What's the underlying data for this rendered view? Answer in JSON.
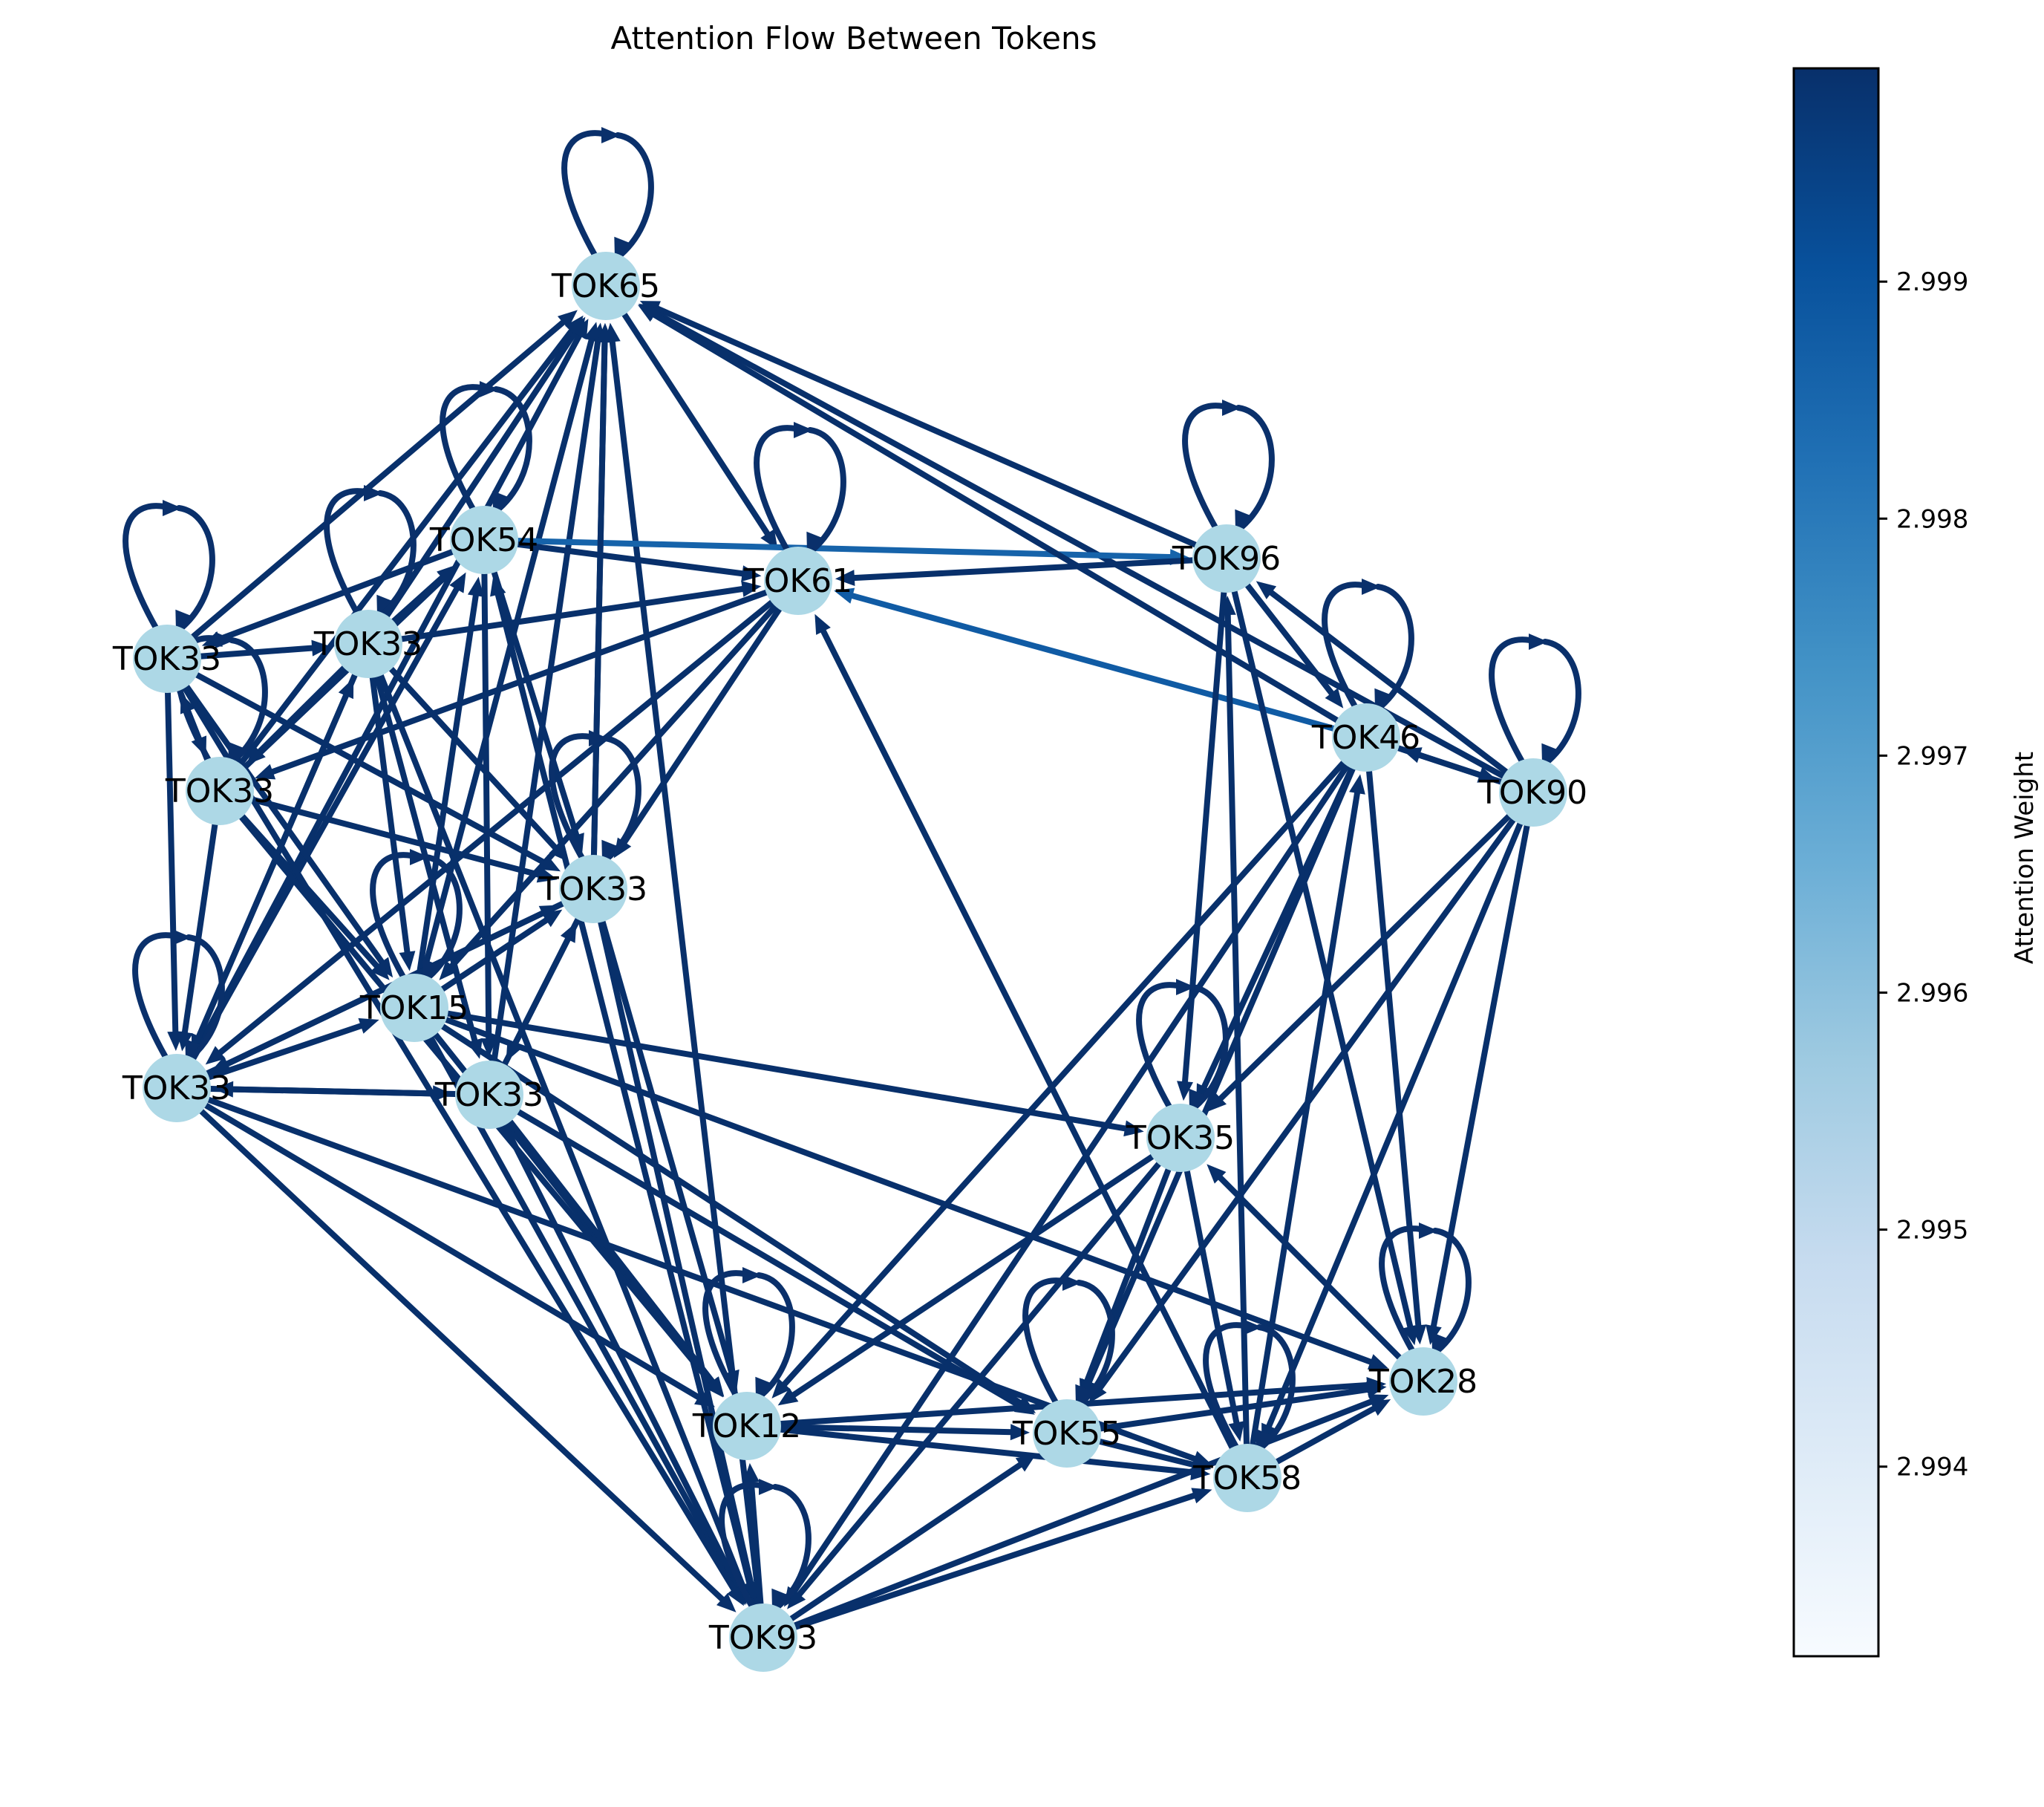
{
  "title": "Attention Flow Between Tokens",
  "colorbar": {
    "label": "Attention Weight",
    "range": [
      2.9932,
      2.9999
    ],
    "ticks": [
      "2.994",
      "2.995",
      "2.996",
      "2.997",
      "2.998",
      "2.999"
    ],
    "tick_values": [
      2.994,
      2.995,
      2.996,
      2.997,
      2.998,
      2.999
    ],
    "colormap": "Blues",
    "colors": [
      "#f7fbff",
      "#deebf7",
      "#c6dbef",
      "#9ecae1",
      "#6baed6",
      "#4292c6",
      "#2171b5",
      "#08519c",
      "#08306b"
    ]
  },
  "node_color": "#add8e6",
  "edge_color_default": "#0a306b",
  "nodes": [
    {
      "id": "n65",
      "label": "TOK65"
    },
    {
      "id": "n54",
      "label": "TOK54"
    },
    {
      "id": "n61",
      "label": "TOK61"
    },
    {
      "id": "n96",
      "label": "TOK96"
    },
    {
      "id": "n46",
      "label": "TOK46"
    },
    {
      "id": "n90",
      "label": "TOK90"
    },
    {
      "id": "a33",
      "label": "TOK33"
    },
    {
      "id": "b33",
      "label": "TOK33"
    },
    {
      "id": "c33",
      "label": "TOK33"
    },
    {
      "id": "d33",
      "label": "TOK33"
    },
    {
      "id": "e33",
      "label": "TOK33"
    },
    {
      "id": "f33",
      "label": "TOK33"
    },
    {
      "id": "n15",
      "label": "TOK15"
    },
    {
      "id": "n35",
      "label": "TOK35"
    },
    {
      "id": "n28",
      "label": "TOK28"
    },
    {
      "id": "n12",
      "label": "TOK12"
    },
    {
      "id": "n55",
      "label": "TOK55"
    },
    {
      "id": "n58",
      "label": "TOK58"
    },
    {
      "id": "n93",
      "label": "TOK93"
    }
  ],
  "self_loops": [
    "n65",
    "n54",
    "n61",
    "n96",
    "n46",
    "n90",
    "a33",
    "b33",
    "c33",
    "d33",
    "e33",
    "n15",
    "n35",
    "n28",
    "n12",
    "n55",
    "n58",
    "n93"
  ],
  "edges": [
    {
      "from": "a33",
      "to": "n65",
      "w": 2.9999
    },
    {
      "from": "b33",
      "to": "n65",
      "w": 2.9999
    },
    {
      "from": "c33",
      "to": "n65",
      "w": 2.9999
    },
    {
      "from": "e33",
      "to": "n65",
      "w": 2.9999
    },
    {
      "from": "n15",
      "to": "n65",
      "w": 2.9999
    },
    {
      "from": "f33",
      "to": "n65",
      "w": 2.9999
    },
    {
      "from": "n93",
      "to": "n65",
      "w": 2.9999
    },
    {
      "from": "n96",
      "to": "n65",
      "w": 2.9999
    },
    {
      "from": "n90",
      "to": "n65",
      "w": 2.9999
    },
    {
      "from": "d33",
      "to": "n65",
      "w": 2.9999
    },
    {
      "from": "n65",
      "to": "n61",
      "w": 2.9999
    },
    {
      "from": "n54",
      "to": "a33",
      "w": 2.9999
    },
    {
      "from": "n54",
      "to": "n96",
      "w": 2.9986
    },
    {
      "from": "n54",
      "to": "n61",
      "w": 2.9999
    },
    {
      "from": "n54",
      "to": "d33",
      "w": 2.9999
    },
    {
      "from": "n54",
      "to": "f33",
      "w": 2.9999
    },
    {
      "from": "b33",
      "to": "n54",
      "w": 2.9999
    },
    {
      "from": "c33",
      "to": "n54",
      "w": 2.9999
    },
    {
      "from": "e33",
      "to": "n54",
      "w": 2.9999
    },
    {
      "from": "n15",
      "to": "n54",
      "w": 2.9999
    },
    {
      "from": "n93",
      "to": "n54",
      "w": 2.9999
    },
    {
      "from": "n46",
      "to": "n65",
      "w": 2.9999
    },
    {
      "from": "n96",
      "to": "n61",
      "w": 2.9999
    },
    {
      "from": "n46",
      "to": "n61",
      "w": 2.9988
    },
    {
      "from": "b33",
      "to": "n61",
      "w": 2.9999
    },
    {
      "from": "n61",
      "to": "c33",
      "w": 2.9999
    },
    {
      "from": "n61",
      "to": "d33",
      "w": 2.9999
    },
    {
      "from": "n61",
      "to": "e33",
      "w": 2.9999
    },
    {
      "from": "n61",
      "to": "n15",
      "w": 2.9999
    },
    {
      "from": "n58",
      "to": "n61",
      "w": 2.9999
    },
    {
      "from": "a33",
      "to": "b33",
      "w": 2.9999
    },
    {
      "from": "a33",
      "to": "c33",
      "w": 2.9999
    },
    {
      "from": "a33",
      "to": "e33",
      "w": 2.9999
    },
    {
      "from": "a33",
      "to": "n15",
      "w": 2.9999
    },
    {
      "from": "a33",
      "to": "d33",
      "w": 2.9999
    },
    {
      "from": "c33",
      "to": "a33",
      "w": 2.9999
    },
    {
      "from": "b33",
      "to": "c33",
      "w": 2.9999
    },
    {
      "from": "b33",
      "to": "e33",
      "w": 2.9999
    },
    {
      "from": "b33",
      "to": "n15",
      "w": 2.9999
    },
    {
      "from": "b33",
      "to": "f33",
      "w": 2.9999
    },
    {
      "from": "b33",
      "to": "d33",
      "w": 2.9999
    },
    {
      "from": "b33",
      "to": "n93",
      "w": 2.9999
    },
    {
      "from": "c33",
      "to": "e33",
      "w": 2.9999
    },
    {
      "from": "c33",
      "to": "d33",
      "w": 2.9999
    },
    {
      "from": "c33",
      "to": "n15",
      "w": 2.9999
    },
    {
      "from": "c33",
      "to": "n12",
      "w": 2.9999
    },
    {
      "from": "e33",
      "to": "f33",
      "w": 2.9999
    },
    {
      "from": "e33",
      "to": "n15",
      "w": 2.9999
    },
    {
      "from": "e33",
      "to": "n93",
      "w": 2.9999
    },
    {
      "from": "e33",
      "to": "n12",
      "w": 2.9999
    },
    {
      "from": "n15",
      "to": "d33",
      "w": 2.9999
    },
    {
      "from": "f33",
      "to": "d33",
      "w": 2.9999
    },
    {
      "from": "n15",
      "to": "n35",
      "w": 2.9999
    },
    {
      "from": "n15",
      "to": "n28",
      "w": 2.9999
    },
    {
      "from": "n15",
      "to": "n55",
      "w": 2.9999
    },
    {
      "from": "n15",
      "to": "n93",
      "w": 2.9999
    },
    {
      "from": "n15",
      "to": "n12",
      "w": 2.9999
    },
    {
      "from": "f33",
      "to": "n93",
      "w": 2.9999
    },
    {
      "from": "f33",
      "to": "n12",
      "w": 2.9999
    },
    {
      "from": "f33",
      "to": "n55",
      "w": 2.9999
    },
    {
      "from": "e33",
      "to": "d33",
      "w": 2.9999
    },
    {
      "from": "d33",
      "to": "e33",
      "w": 2.9999
    },
    {
      "from": "e33",
      "to": "b33",
      "w": 2.9999
    },
    {
      "from": "f33",
      "to": "e33",
      "w": 2.9999
    },
    {
      "from": "d33",
      "to": "n93",
      "w": 2.9999
    },
    {
      "from": "d33",
      "to": "n12",
      "w": 2.9999
    },
    {
      "from": "d33",
      "to": "f33",
      "w": 2.9999
    },
    {
      "from": "a33",
      "to": "n93",
      "w": 2.9999
    },
    {
      "from": "n96",
      "to": "n46",
      "w": 2.9999
    },
    {
      "from": "n90",
      "to": "n96",
      "w": 2.9999
    },
    {
      "from": "n46",
      "to": "n90",
      "w": 2.9999
    },
    {
      "from": "n90",
      "to": "n46",
      "w": 2.9999
    },
    {
      "from": "n96",
      "to": "n35",
      "w": 2.9999
    },
    {
      "from": "n96",
      "to": "n28",
      "w": 2.9999
    },
    {
      "from": "n58",
      "to": "n96",
      "w": 2.9999
    },
    {
      "from": "n46",
      "to": "n35",
      "w": 2.9999
    },
    {
      "from": "n46",
      "to": "n12",
      "w": 2.9999
    },
    {
      "from": "n46",
      "to": "n55",
      "w": 2.9999
    },
    {
      "from": "n46",
      "to": "n93",
      "w": 2.9999
    },
    {
      "from": "n46",
      "to": "n28",
      "w": 2.9999
    },
    {
      "from": "n58",
      "to": "n46",
      "w": 2.9999
    },
    {
      "from": "n90",
      "to": "n35",
      "w": 2.9999
    },
    {
      "from": "n90",
      "to": "n28",
      "w": 2.9999
    },
    {
      "from": "n90",
      "to": "n55",
      "w": 2.9999
    },
    {
      "from": "n90",
      "to": "n58",
      "w": 2.9999
    },
    {
      "from": "n35",
      "to": "n55",
      "w": 2.9999
    },
    {
      "from": "n35",
      "to": "n93",
      "w": 2.9999
    },
    {
      "from": "n35",
      "to": "n12",
      "w": 2.9999
    },
    {
      "from": "n28",
      "to": "n35",
      "w": 2.9999
    },
    {
      "from": "n35",
      "to": "n58",
      "w": 2.9999
    },
    {
      "from": "n12",
      "to": "n55",
      "w": 2.9999
    },
    {
      "from": "n12",
      "to": "n58",
      "w": 2.9999
    },
    {
      "from": "n12",
      "to": "n28",
      "w": 2.9999
    },
    {
      "from": "n55",
      "to": "n28",
      "w": 2.9999
    },
    {
      "from": "n58",
      "to": "n28",
      "w": 2.9999
    },
    {
      "from": "n93",
      "to": "n12",
      "w": 2.9999
    },
    {
      "from": "n93",
      "to": "n55",
      "w": 2.9999
    },
    {
      "from": "n93",
      "to": "n58",
      "w": 2.9999
    },
    {
      "from": "n93",
      "to": "n28",
      "w": 2.9999
    },
    {
      "from": "e33",
      "to": "n58",
      "w": 2.9999
    },
    {
      "from": "d33",
      "to": "n65",
      "w": 2.9999
    },
    {
      "from": "n55",
      "to": "n58",
      "w": 2.9999
    }
  ]
}
